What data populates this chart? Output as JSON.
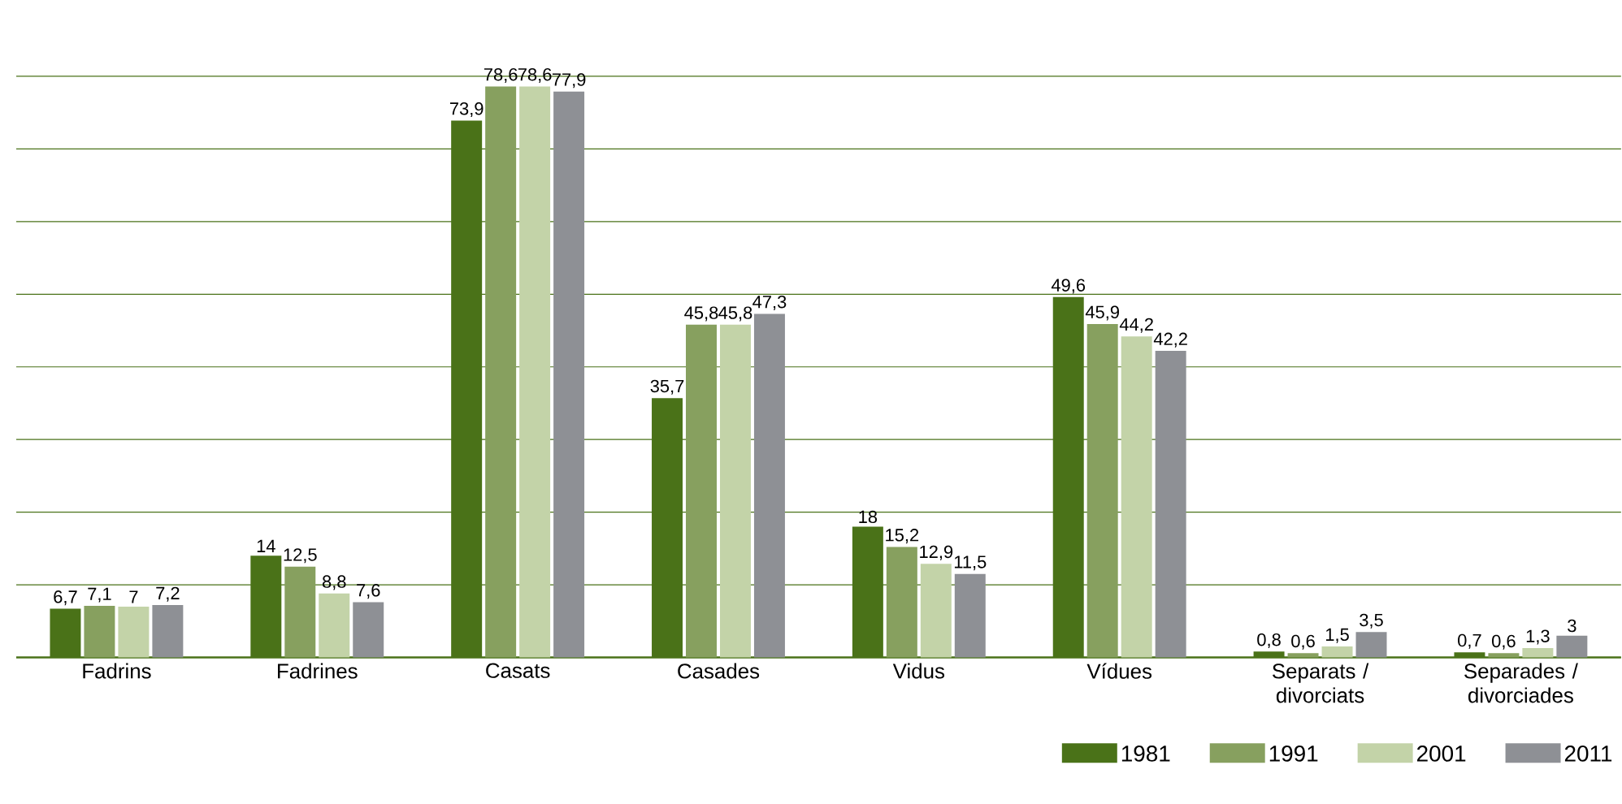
{
  "chart_data": {
    "type": "bar",
    "categories": [
      "Fadrins",
      "Fadrines",
      "Casats",
      "Casades",
      "Vidus",
      "Vídues",
      "Separats / divorciats",
      "Separades / divorciades"
    ],
    "series": [
      {
        "name": "1981",
        "color": "#4a7218",
        "values": [
          6.7,
          14,
          73.9,
          35.7,
          18,
          49.6,
          0.8,
          0.7
        ],
        "value_labels": [
          "6,7",
          "14",
          "73,9",
          "35,7",
          "18",
          "49,6",
          "0,8",
          "0,7"
        ]
      },
      {
        "name": "1991",
        "color": "#87a05f",
        "values": [
          7.1,
          12.5,
          78.6,
          45.8,
          15.2,
          45.9,
          0.6,
          0.6
        ],
        "value_labels": [
          "7,1",
          "12,5",
          "78,6",
          "45,8",
          "15,2",
          "45,9",
          "0,6",
          "0,6"
        ]
      },
      {
        "name": "2001",
        "color": "#c3d3a8",
        "values": [
          7,
          8.8,
          78.6,
          45.8,
          12.9,
          44.2,
          1.5,
          1.3
        ],
        "value_labels": [
          "7",
          "8,8",
          "78,6",
          "45,8",
          "12,9",
          "44,2",
          "1,5",
          "1,3"
        ]
      },
      {
        "name": "2011",
        "color": "#8e9095",
        "values": [
          7.2,
          7.6,
          77.9,
          47.3,
          11.5,
          42.2,
          3.5,
          3
        ],
        "value_labels": [
          "7,2",
          "7,6",
          "77,9",
          "47,3",
          "11,5",
          "42,2",
          "3,5",
          "3"
        ]
      }
    ],
    "ylim": [
      0,
      80
    ],
    "yticks": [
      {
        "value": 0,
        "label": null
      },
      {
        "value": 10,
        "label": null
      },
      {
        "value": 20,
        "label": null
      },
      {
        "value": 30,
        "label": null
      },
      {
        "value": 40,
        "label": null
      },
      {
        "value": 50,
        "label": null
      },
      {
        "value": 60,
        "label": null
      },
      {
        "value": 70,
        "label": null
      },
      {
        "value": 80,
        "label": null
      }
    ],
    "grid": "y",
    "legend": "bottom right"
  }
}
